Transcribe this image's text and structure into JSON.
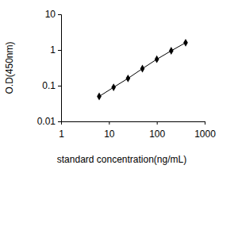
{
  "chart_data": {
    "type": "line",
    "x_label": "standard concentration(ng/mL)",
    "y_label": "O.D(450nm)",
    "x": [
      6.25,
      12.5,
      25,
      50,
      100,
      200,
      400
    ],
    "values": [
      0.05,
      0.09,
      0.16,
      0.3,
      0.55,
      0.95,
      1.6
    ],
    "color": "#000000",
    "marker": "diamond",
    "line_style": "solid",
    "log": true,
    "grid": false,
    "xlim": [
      1,
      1000
    ],
    "xticks": [
      1,
      10,
      100,
      1000
    ],
    "ylim": [
      0.01,
      10
    ],
    "yticks": [
      0.01,
      0.1,
      1,
      10
    ]
  }
}
